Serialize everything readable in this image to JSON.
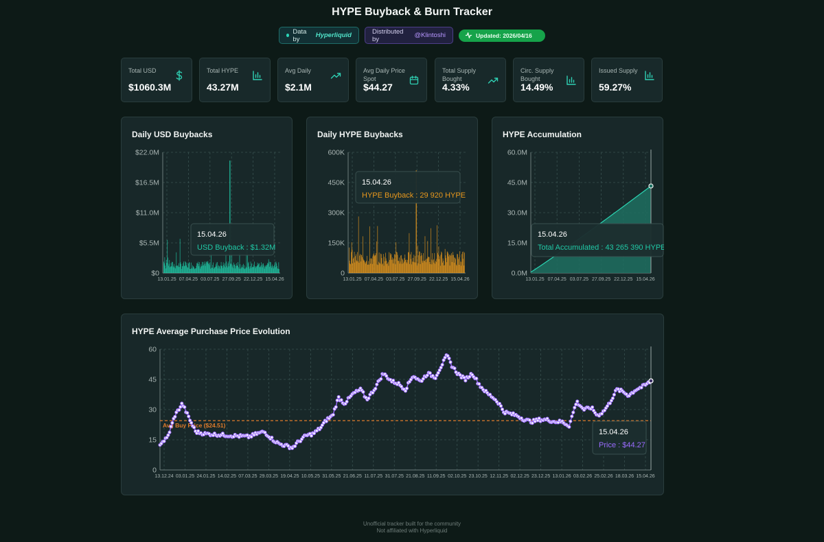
{
  "header": {
    "title": "HYPE Buyback & Burn Tracker",
    "data_prefix": "Data by",
    "data_source": "Hyperliquid",
    "dist_prefix": "Distributed by",
    "dist_author": "@Klintoshi",
    "updated": "Updated: 2026/04/16"
  },
  "stats": [
    {
      "label": "Total USD",
      "value": "$1060.3M",
      "icon": "dollar-icon"
    },
    {
      "label": "Total HYPE",
      "value": "43.27M",
      "icon": "bar-chart-icon"
    },
    {
      "label": "Avg Daily",
      "value": "$2.1M",
      "icon": "trending-up-icon"
    },
    {
      "label": "Avg Daily Price Spot",
      "value": "$44.27",
      "icon": "calendar-icon"
    },
    {
      "label": "Total Supply Bought",
      "value": "4.33%",
      "icon": "trending-up-icon"
    },
    {
      "label": "Circ. Supply Bought",
      "value": "14.49%",
      "icon": "bar-chart-icon"
    },
    {
      "label": "Issued Supply",
      "value": "59.27%",
      "icon": "bar-chart-icon"
    }
  ],
  "colors": {
    "teal": "#20c9a6",
    "orange": "#e8981d",
    "purple": "#9b6cff",
    "grid": "#38504f",
    "avg_line": "#e07b2a"
  },
  "chart_data": [
    {
      "type": "bar",
      "title": "Daily USD Buybacks",
      "y_ticks": [
        "$0",
        "$5.5M",
        "$11.0M",
        "$16.5M",
        "$22.0M"
      ],
      "ylim": [
        0,
        22000000
      ],
      "x_ticks": [
        "13.01.25",
        "07.04.25",
        "03.07.25",
        "27.09.25",
        "22.12.25",
        "15.04.26"
      ],
      "n_days": 500,
      "typical_value": 1600000,
      "spike": {
        "position": 0.57,
        "value": 20500000
      },
      "tooltip": {
        "date": "15.04.26",
        "label": "USD Buyback",
        "value": "$1.32M"
      }
    },
    {
      "type": "bar",
      "title": "Daily HYPE Buybacks",
      "y_ticks": [
        "0",
        "150K",
        "300K",
        "450K",
        "600K"
      ],
      "ylim": [
        0,
        600000
      ],
      "x_ticks": [
        "13.01.25",
        "07.04.25",
        "03.07.25",
        "27.09.25",
        "22.12.25",
        "15.04.26"
      ],
      "n_days": 500,
      "typical_value": 80000,
      "spike": {
        "position": 0.58,
        "value": 510000
      },
      "tooltip": {
        "date": "15.04.26",
        "label": "HYPE Buyback",
        "value": "29 920 HYPE"
      }
    },
    {
      "type": "area",
      "title": "HYPE Accumulation",
      "y_ticks": [
        "0.0M",
        "15.0M",
        "30.0M",
        "45.0M",
        "60.0M"
      ],
      "ylim": [
        0,
        60000000
      ],
      "x_ticks": [
        "13.01.25",
        "07.04.25",
        "03.07.25",
        "27.09.25",
        "22.12.25",
        "15.04.26"
      ],
      "start_value": 500000,
      "end_value": 43265390,
      "tooltip": {
        "date": "15.04.26",
        "label": "Total Accumulated",
        "value": "43 265 390 HYPE"
      }
    },
    {
      "type": "line",
      "title": "HYPE Average Purchase Price Evolution",
      "y_ticks": [
        "0",
        "15",
        "30",
        "45",
        "60"
      ],
      "ylim": [
        0,
        60
      ],
      "x_ticks": [
        "13.12.24",
        "03.01.25",
        "24.01.25",
        "14.02.25",
        "07.03.25",
        "29.03.25",
        "19.04.25",
        "10.05.25",
        "31.05.25",
        "21.06.25",
        "11.07.25",
        "31.07.25",
        "21.08.25",
        "11.09.25",
        "02.10.25",
        "23.10.25",
        "12.11.25",
        "02.12.25",
        "23.12.25",
        "13.01.26",
        "03.02.26",
        "25.02.26",
        "18.03.26",
        "15.04.26"
      ],
      "avg_price": 24.51,
      "avg_label": "Avg Buy Price ($24.51)",
      "keypoints": [
        [
          0,
          13
        ],
        [
          0.5,
          16
        ],
        [
          1.0,
          27
        ],
        [
          1.5,
          33
        ],
        [
          2.0,
          25
        ],
        [
          2.4,
          19
        ],
        [
          3,
          18
        ],
        [
          4,
          17.5
        ],
        [
          5,
          17
        ],
        [
          6,
          16.5
        ],
        [
          6.5,
          18
        ],
        [
          7.0,
          19
        ],
        [
          7.6,
          15
        ],
        [
          8.0,
          13
        ],
        [
          8.5,
          12
        ],
        [
          8.9,
          11
        ],
        [
          9.3,
          14
        ],
        [
          9.8,
          17
        ],
        [
          10.3,
          18
        ],
        [
          10.8,
          21
        ],
        [
          11.2,
          25
        ],
        [
          11.6,
          27
        ],
        [
          12.0,
          36
        ],
        [
          12.4,
          33
        ],
        [
          13.0,
          38
        ],
        [
          13.5,
          40
        ],
        [
          13.9,
          35
        ],
        [
          14.4,
          40
        ],
        [
          15.0,
          48
        ],
        [
          15.6,
          44
        ],
        [
          16.0,
          43
        ],
        [
          16.5,
          40
        ],
        [
          17.0,
          47
        ],
        [
          17.5,
          44
        ],
        [
          18.0,
          48
        ],
        [
          18.5,
          46
        ],
        [
          19.0,
          53
        ],
        [
          19.3,
          57
        ],
        [
          19.6,
          52
        ],
        [
          20.0,
          48
        ],
        [
          20.5,
          45
        ],
        [
          21.0,
          48
        ],
        [
          21.5,
          42
        ],
        [
          22.0,
          38
        ],
        [
          22.4,
          36
        ],
        [
          22.8,
          33
        ],
        [
          23.1,
          29
        ],
        [
          23.5,
          28
        ],
        [
          24.0,
          27
        ],
        [
          24.5,
          25
        ],
        [
          25.0,
          24
        ],
        [
          25.5,
          25
        ],
        [
          26.0,
          25
        ],
        [
          26.5,
          24
        ],
        [
          27.0,
          24
        ],
        [
          27.5,
          22
        ],
        [
          28.0,
          34
        ],
        [
          28.5,
          30
        ],
        [
          29.0,
          31
        ],
        [
          29.4,
          27
        ],
        [
          29.8,
          29
        ],
        [
          30.2,
          33
        ],
        [
          30.7,
          40
        ],
        [
          31.1,
          39
        ],
        [
          31.5,
          37
        ],
        [
          32.0,
          40
        ],
        [
          32.6,
          42
        ],
        [
          33.0,
          44.27
        ]
      ],
      "tooltip": {
        "date": "15.04.26",
        "label": "Price",
        "value": "$44.27"
      }
    }
  ],
  "footer": {
    "line1": "Unofficial tracker built for the community",
    "line2": "Not affiliated with Hyperliquid"
  }
}
